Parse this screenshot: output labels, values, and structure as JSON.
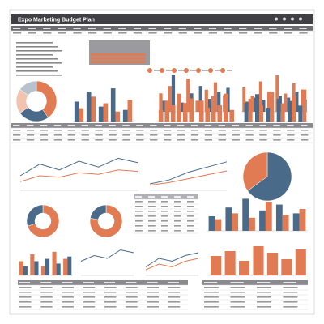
{
  "header": {
    "title": "Expo Marketing Budget Plan"
  },
  "charts": [
    {
      "type": "pie",
      "donut": true,
      "values": [
        40,
        25,
        20,
        15
      ],
      "colors": [
        "#e07b53",
        "#4a6a8a",
        "#f2c4b0",
        "#b8c2cc"
      ]
    },
    {
      "type": "bar",
      "ylim": [
        0,
        22
      ],
      "series": [
        {
          "color": "#e07b53",
          "values": [
            10,
            14,
            8,
            18,
            6,
            12,
            16,
            9
          ]
        },
        {
          "color": "#4a6a8a",
          "values": [
            6,
            20,
            5,
            10,
            14,
            7,
            11,
            13
          ]
        }
      ]
    },
    {
      "type": "bar",
      "ylim": [
        0,
        20
      ],
      "series": [
        {
          "color": "#e07b53",
          "values": [
            12,
            8,
            15,
            10,
            18,
            9,
            14,
            11
          ]
        },
        {
          "color": "#4a6a8a",
          "values": [
            5,
            7,
            6,
            9,
            8,
            7,
            10,
            6
          ]
        }
      ]
    },
    {
      "type": "bar",
      "ylim": [
        0,
        22
      ],
      "series": [
        {
          "color": "#4a6a8a",
          "values": [
            12,
            18,
            9,
            20,
            7
          ]
        },
        {
          "color": "#e07b53",
          "values": [
            8,
            15,
            11,
            6,
            13
          ]
        }
      ]
    },
    {
      "type": "bar",
      "ylim": [
        0,
        14
      ],
      "series": [
        {
          "color": "#e07b53",
          "values": [
            5,
            9,
            7,
            12,
            8,
            10
          ]
        }
      ]
    },
    {
      "type": "bar",
      "ylim": [
        0,
        14
      ],
      "series": [
        {
          "color": "#e07b53",
          "values": [
            9,
            6,
            11,
            7,
            12,
            5
          ]
        }
      ]
    },
    {
      "type": "bar",
      "ylim": [
        0,
        16
      ],
      "series": [
        {
          "color": "#4a6a8a",
          "values": [
            8,
            12,
            6,
            10,
            9,
            7
          ]
        },
        {
          "color": "#e07b53",
          "values": [
            10,
            7,
            13,
            8,
            11,
            14
          ]
        }
      ]
    },
    {
      "type": "line",
      "ylim": [
        0,
        25
      ],
      "series": [
        {
          "color": "#4a6a8a",
          "values": [
            10,
            18,
            14,
            20,
            16,
            22,
            19
          ]
        },
        {
          "color": "#e07b53",
          "values": [
            6,
            10,
            9,
            12,
            11,
            14,
            13
          ]
        }
      ]
    },
    {
      "type": "line",
      "ylim": [
        0,
        25
      ],
      "series": [
        {
          "color": "#4a6a8a",
          "values": [
            5,
            8,
            14,
            18,
            22
          ]
        },
        {
          "color": "#e07b53",
          "values": [
            4,
            6,
            9,
            12,
            15
          ]
        }
      ]
    },
    {
      "type": "pie",
      "donut": false,
      "values": [
        65,
        35
      ],
      "colors": [
        "#4a6a8a",
        "#e07b53"
      ]
    },
    {
      "type": "pie",
      "donut": true,
      "values": [
        70,
        30
      ],
      "colors": [
        "#e07b53",
        "#4a6a8a"
      ]
    },
    {
      "type": "pie",
      "donut": true,
      "values": [
        78,
        22
      ],
      "colors": [
        "#e07b53",
        "#4a6a8a"
      ]
    },
    {
      "type": "bar",
      "ylim": [
        0,
        25
      ],
      "series": [
        {
          "color": "#4a6a8a",
          "values": [
            10,
            16,
            22,
            14,
            18,
            12
          ]
        },
        {
          "color": "#e07b53",
          "values": [
            8,
            12,
            9,
            20,
            11,
            15
          ]
        }
      ]
    },
    {
      "type": "bar",
      "ylim": [
        0,
        12
      ],
      "series": [
        {
          "color": "#e07b53",
          "values": [
            6,
            9,
            4,
            10,
            7
          ]
        },
        {
          "color": "#4a6a8a",
          "values": [
            4,
            6,
            7,
            5,
            8
          ]
        }
      ]
    },
    {
      "type": "line",
      "ylim": [
        0,
        10
      ],
      "series": [
        {
          "color": "#4a6a8a",
          "values": [
            5,
            7,
            6,
            9,
            8
          ]
        }
      ]
    },
    {
      "type": "line",
      "ylim": [
        0,
        10
      ],
      "series": [
        {
          "color": "#4a6a8a",
          "values": [
            3,
            6,
            5,
            7,
            8
          ]
        },
        {
          "color": "#e07b53",
          "values": [
            2,
            4,
            3,
            5,
            6
          ]
        }
      ]
    },
    {
      "type": "bar",
      "ylim": [
        0,
        20
      ],
      "series": [
        {
          "color": "#e07b53",
          "values": [
            12,
            15,
            9,
            18,
            14,
            10,
            16
          ]
        }
      ]
    }
  ]
}
